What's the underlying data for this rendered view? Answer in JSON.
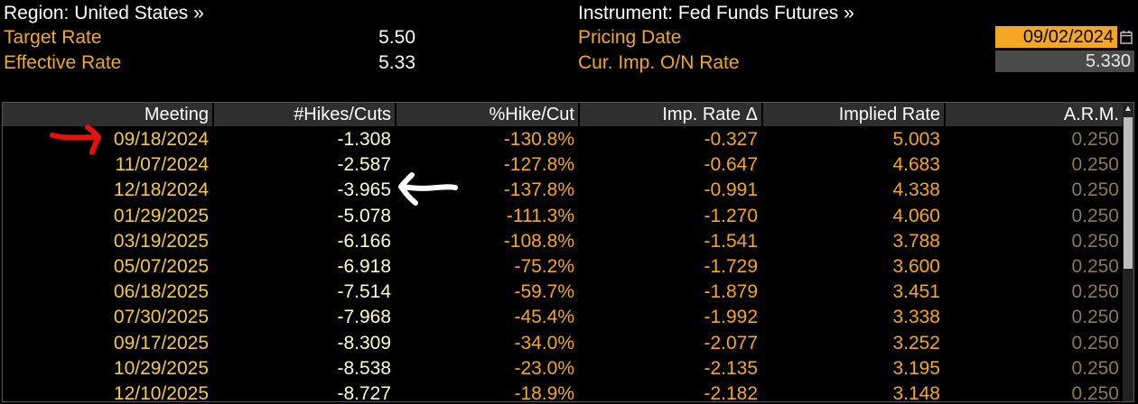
{
  "header": {
    "region_label": "Region: United States »",
    "instrument_label": "Instrument: Fed Funds Futures »",
    "target_rate_label": "Target Rate",
    "target_rate_value": "5.50",
    "effective_rate_label": "Effective Rate",
    "effective_rate_value": "5.33",
    "pricing_date_label": "Pricing Date",
    "pricing_date_value": "09/02/2024",
    "on_rate_label": "Cur. Imp. O/N Rate",
    "on_rate_value": "5.330"
  },
  "table": {
    "columns": [
      "Meeting",
      "#Hikes/Cuts",
      "%Hike/Cut",
      "Imp. Rate Δ",
      "Implied Rate",
      "A.R.M."
    ],
    "rows": [
      {
        "meeting": "09/18/2024",
        "hikes": "-1.308",
        "pct": "-130.8%",
        "imp_delta": "-0.327",
        "implied": "5.003",
        "arm": "0.250"
      },
      {
        "meeting": "11/07/2024",
        "hikes": "-2.587",
        "pct": "-127.8%",
        "imp_delta": "-0.647",
        "implied": "4.683",
        "arm": "0.250"
      },
      {
        "meeting": "12/18/2024",
        "hikes": "-3.965",
        "pct": "-137.8%",
        "imp_delta": "-0.991",
        "implied": "4.338",
        "arm": "0.250"
      },
      {
        "meeting": "01/29/2025",
        "hikes": "-5.078",
        "pct": "-111.3%",
        "imp_delta": "-1.270",
        "implied": "4.060",
        "arm": "0.250"
      },
      {
        "meeting": "03/19/2025",
        "hikes": "-6.166",
        "pct": "-108.8%",
        "imp_delta": "-1.541",
        "implied": "3.788",
        "arm": "0.250"
      },
      {
        "meeting": "05/07/2025",
        "hikes": "-6.918",
        "pct": "-75.2%",
        "imp_delta": "-1.729",
        "implied": "3.600",
        "arm": "0.250"
      },
      {
        "meeting": "06/18/2025",
        "hikes": "-7.514",
        "pct": "-59.7%",
        "imp_delta": "-1.879",
        "implied": "3.451",
        "arm": "0.250"
      },
      {
        "meeting": "07/30/2025",
        "hikes": "-7.968",
        "pct": "-45.4%",
        "imp_delta": "-1.992",
        "implied": "3.338",
        "arm": "0.250"
      },
      {
        "meeting": "09/17/2025",
        "hikes": "-8.309",
        "pct": "-34.0%",
        "imp_delta": "-2.077",
        "implied": "3.252",
        "arm": "0.250"
      },
      {
        "meeting": "10/29/2025",
        "hikes": "-8.538",
        "pct": "-23.0%",
        "imp_delta": "-2.135",
        "implied": "3.195",
        "arm": "0.250"
      },
      {
        "meeting": "12/10/2025",
        "hikes": "-8.727",
        "pct": "-18.9%",
        "imp_delta": "-2.182",
        "implied": "3.148",
        "arm": "0.250"
      }
    ]
  },
  "icons": {
    "calendar": "calendar-icon",
    "scroll_up": "scroll-up-arrow-icon"
  },
  "colors": {
    "accent_orange": "#f5a623",
    "label_white": "#ffffff",
    "annotation_red": "#e3120b"
  }
}
